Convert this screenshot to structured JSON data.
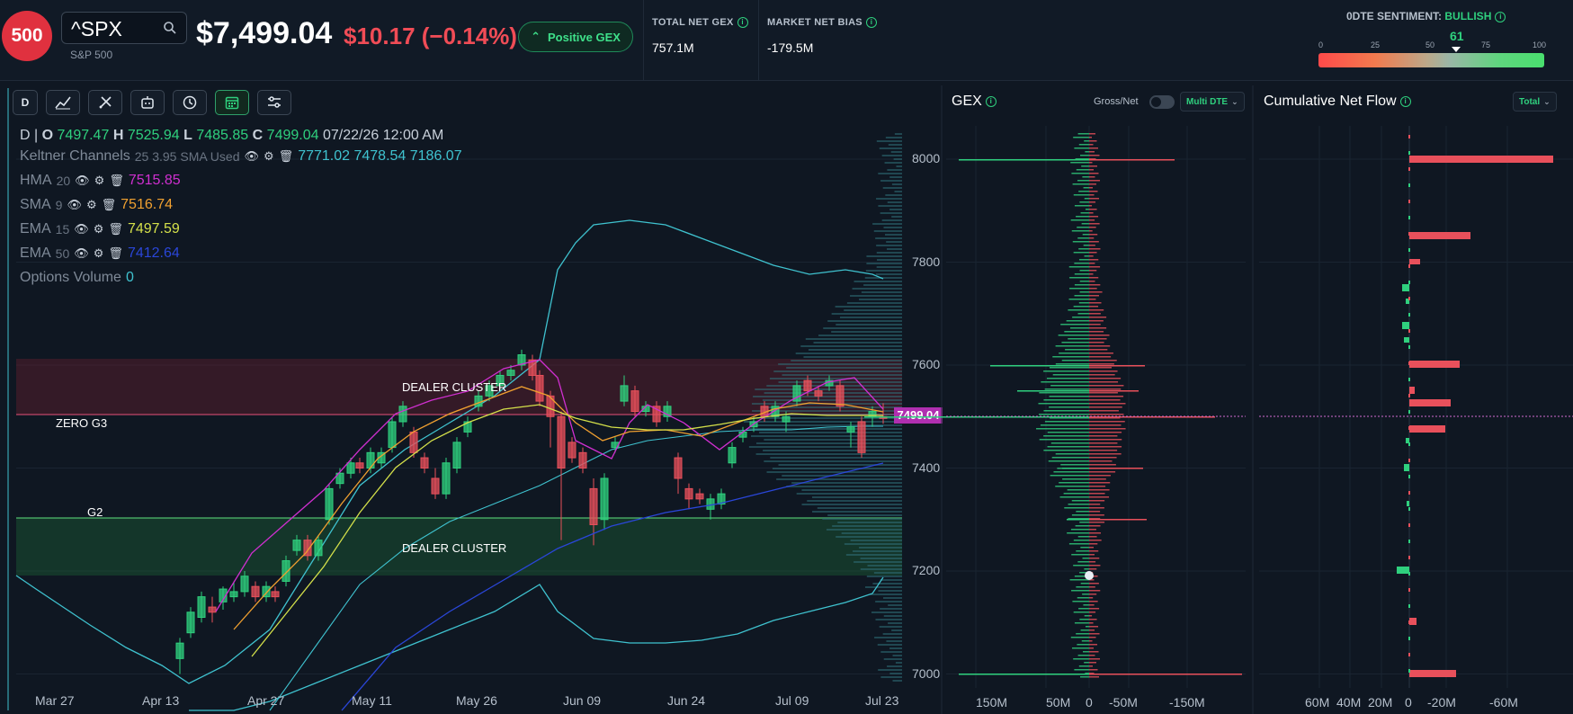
{
  "header": {
    "logo_text": "500",
    "search_value": "^SPX",
    "ticker_name": "S&P 500",
    "price": "$7,499.04",
    "change": "$10.17 (−0.14%)",
    "gex_pill": "Positive GEX",
    "stats": [
      {
        "label": "TOTAL NET GEX",
        "value": "757.1M"
      },
      {
        "label": "MARKET NET BIAS",
        "value": "-179.5M"
      }
    ],
    "sentiment": {
      "label": "0DTE SENTIMENT:",
      "value": "BULLISH",
      "score": "61",
      "level": 0.61,
      "ticks": [
        "0",
        "25",
        "50",
        "75",
        "100"
      ]
    }
  },
  "toolbar": {
    "interval": "D",
    "icons": [
      "indicators-icon",
      "drawing-tools-icon",
      "bot-icon",
      "history-icon",
      "calendar-icon",
      "settings-sliders-icon"
    ]
  },
  "chart": {
    "ohlc": {
      "interval": "D",
      "open_label": "O",
      "open": "7497.47",
      "high_label": "H",
      "high": "7525.94",
      "low_label": "L",
      "low": "7485.85",
      "close_label": "C",
      "close": "7499.04",
      "date": "07/22/26 12:00 AM"
    },
    "indicators": [
      {
        "name": "Keltner Channels",
        "params": "25 3.95 SMA Used",
        "values": "7771.02 7478.54 7186.07",
        "color": "#3fc2cf"
      },
      {
        "name": "HMA",
        "params": "20",
        "values": "7515.85",
        "color": "#d02fd0"
      },
      {
        "name": "SMA",
        "params": "9",
        "values": "7516.74",
        "color": "#f0a030"
      },
      {
        "name": "EMA",
        "params": "15",
        "values": "7497.59",
        "color": "#d4e04a"
      },
      {
        "name": "EMA",
        "params": "50",
        "values": "7412.64",
        "color": "#2a46d8"
      },
      {
        "name": "Options Volume",
        "params": "",
        "values": "0",
        "color": "#3fc2cf"
      }
    ],
    "zones": {
      "dealer_cluster_upper": "DEALER CLUSTER",
      "dealer_cluster_lower": "DEALER CLUSTER",
      "zero_gamma": "ZERO G3",
      "g2": "G2"
    },
    "last_price_tag": "7499.04",
    "x_labels": [
      "Mar 27",
      "Apr 13",
      "Apr 27",
      "May 11",
      "May 26",
      "Jun 09",
      "Jun 24",
      "Jul 09",
      "Jul 23"
    ],
    "y_labels": [
      "8000",
      "7800",
      "7600",
      "7400",
      "7200",
      "7000"
    ]
  },
  "gex_panel": {
    "title": "GEX",
    "toggle_label": "Gross/Net",
    "dropdown": "Multi DTE",
    "x_labels": [
      "150M",
      "50M",
      "0",
      "-50M",
      "-150M"
    ]
  },
  "flow_panel": {
    "title": "Cumulative Net Flow",
    "dropdown": "Total",
    "x_labels": [
      "60M",
      "40M",
      "20M",
      "0",
      "-20M",
      "-60M"
    ]
  },
  "colors": {
    "bull": "#2fd07e",
    "bear": "#e8505b",
    "keltner": "#3fc2cf",
    "hma": "#d02fd0",
    "sma": "#f0a030",
    "ema15": "#d4e04a",
    "ema50": "#2a46d8"
  }
}
